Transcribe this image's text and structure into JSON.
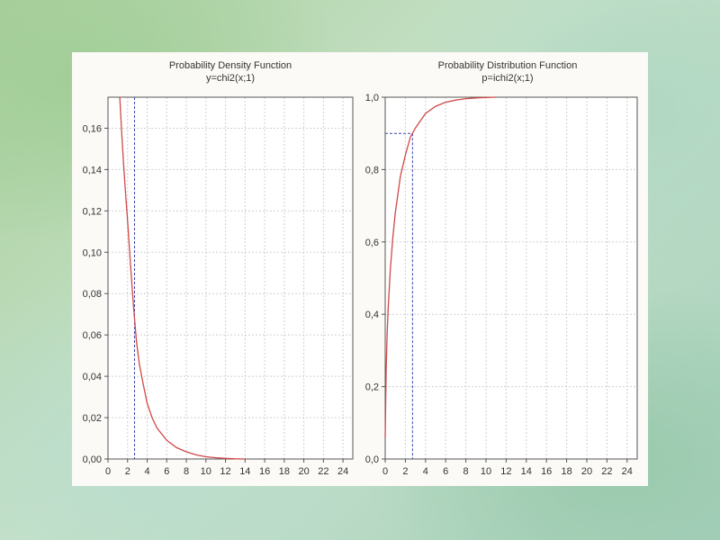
{
  "chart_data": [
    {
      "type": "line",
      "title": "Probability Density Function",
      "subtitle": "y=chi2(x;1)",
      "xlim": [
        0,
        25
      ],
      "ylim": [
        0,
        0.175
      ],
      "xticks": [
        "0",
        "2",
        "4",
        "6",
        "8",
        "10",
        "12",
        "14",
        "16",
        "18",
        "20",
        "22",
        "24"
      ],
      "yticks": [
        "0,00",
        "0,02",
        "0,04",
        "0,06",
        "0,08",
        "0,10",
        "0,12",
        "0,14",
        "0,16"
      ],
      "grid": true,
      "series_color": "#d04848",
      "guide_color": "#3a44b0",
      "marker": {
        "x": 2.71,
        "y": 0.058
      },
      "points": [
        [
          1.2,
          0.175
        ],
        [
          1.4,
          0.158
        ],
        [
          1.6,
          0.142
        ],
        [
          1.8,
          0.128
        ],
        [
          2.0,
          0.115
        ],
        [
          2.3,
          0.094
        ],
        [
          2.6,
          0.074
        ],
        [
          2.9,
          0.057
        ],
        [
          3.2,
          0.046
        ],
        [
          3.6,
          0.036
        ],
        [
          4.0,
          0.027
        ],
        [
          4.5,
          0.02
        ],
        [
          5.0,
          0.015
        ],
        [
          6.0,
          0.009
        ],
        [
          7.0,
          0.0055
        ],
        [
          8.0,
          0.0035
        ],
        [
          9.0,
          0.002
        ],
        [
          10.0,
          0.0011
        ],
        [
          11.0,
          0.0006
        ],
        [
          12.0,
          0.0003
        ],
        [
          13.0,
          0.0001
        ],
        [
          14.0,
          0.0
        ]
      ]
    },
    {
      "type": "line",
      "title": "Probability Distribution Function",
      "subtitle": "p=ichi2(x;1)",
      "xlim": [
        0,
        25
      ],
      "ylim": [
        0,
        1.0
      ],
      "xticks": [
        "0",
        "2",
        "4",
        "6",
        "8",
        "10",
        "12",
        "14",
        "16",
        "18",
        "20",
        "22",
        "24"
      ],
      "yticks": [
        "0,0",
        "0,2",
        "0,4",
        "0,6",
        "0,8",
        "1,0"
      ],
      "grid": true,
      "series_color": "#d04848",
      "guide_color": "#3a44b0",
      "marker": {
        "x": 2.71,
        "y": 0.9
      },
      "points": [
        [
          0.0,
          0.06
        ],
        [
          0.1,
          0.25
        ],
        [
          0.2,
          0.35
        ],
        [
          0.3,
          0.42
        ],
        [
          0.5,
          0.52
        ],
        [
          0.75,
          0.61
        ],
        [
          1.0,
          0.68
        ],
        [
          1.5,
          0.78
        ],
        [
          2.0,
          0.84
        ],
        [
          2.5,
          0.89
        ],
        [
          3.0,
          0.915
        ],
        [
          4.0,
          0.955
        ],
        [
          5.0,
          0.975
        ],
        [
          6.0,
          0.986
        ],
        [
          7.0,
          0.992
        ],
        [
          8.0,
          0.996
        ],
        [
          9.0,
          0.998
        ],
        [
          10.0,
          0.999
        ],
        [
          11.0,
          1.0
        ]
      ]
    }
  ]
}
